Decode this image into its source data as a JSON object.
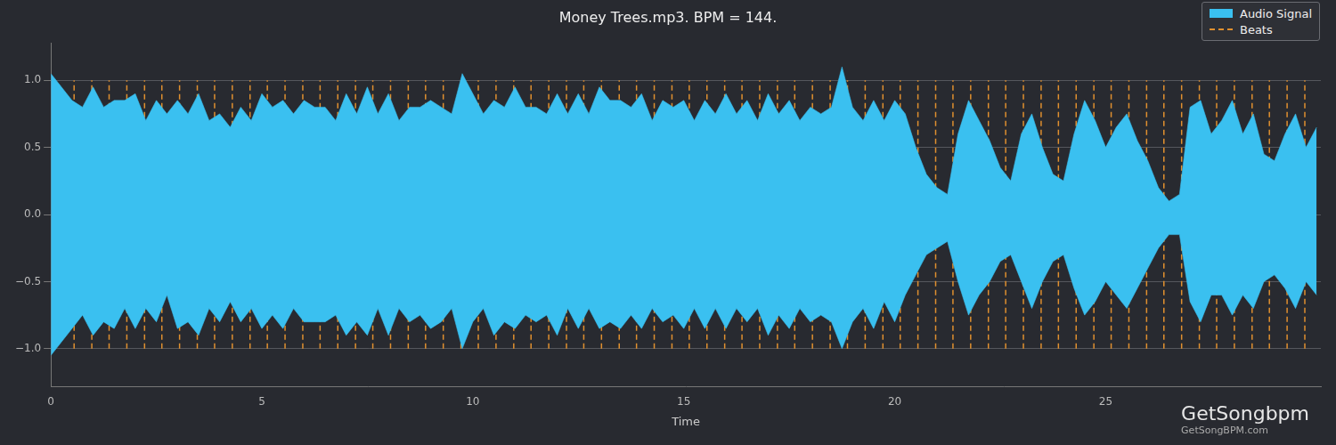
{
  "chart_data": {
    "type": "area",
    "title": "Money Trees.mp3. BPM = 144.",
    "x_label": "Time",
    "x": [
      0,
      0.25,
      0.5,
      0.75,
      1,
      1.25,
      1.5,
      1.75,
      2,
      2.25,
      2.5,
      2.75,
      3,
      3.25,
      3.5,
      3.75,
      4,
      4.25,
      4.5,
      4.75,
      5,
      5.25,
      5.5,
      5.75,
      6,
      6.25,
      6.5,
      6.75,
      7,
      7.25,
      7.5,
      7.75,
      8,
      8.25,
      8.5,
      8.75,
      9,
      9.25,
      9.5,
      9.75,
      10,
      10.25,
      10.5,
      10.75,
      11,
      11.25,
      11.5,
      11.75,
      12,
      12.25,
      12.5,
      12.75,
      13,
      13.25,
      13.5,
      13.75,
      14,
      14.25,
      14.5,
      14.75,
      15,
      15.25,
      15.5,
      15.75,
      16,
      16.25,
      16.5,
      16.75,
      17,
      17.25,
      17.5,
      17.75,
      18,
      18.25,
      18.5,
      18.75,
      19,
      19.25,
      19.5,
      19.75,
      20,
      20.25,
      20.5,
      20.75,
      21,
      21.25,
      21.5,
      21.75,
      22,
      22.25,
      22.5,
      22.75,
      23,
      23.25,
      23.5,
      23.75,
      24,
      24.25,
      24.5,
      24.75,
      25,
      25.25,
      25.5,
      25.75,
      26,
      26.25,
      26.5,
      26.75,
      27,
      27.25,
      27.5,
      27.75,
      28,
      28.25,
      28.5,
      28.75,
      29,
      29.25,
      29.5,
      29.75,
      30
    ],
    "series": [
      {
        "name": "Audio Signal",
        "type": "area",
        "color": "#3ac0f0",
        "values": [
          1.05,
          0.95,
          0.85,
          0.8,
          0.95,
          0.8,
          0.85,
          0.85,
          0.9,
          0.7,
          0.85,
          0.75,
          0.85,
          0.75,
          0.9,
          0.7,
          0.75,
          0.65,
          0.8,
          0.7,
          0.9,
          0.8,
          0.85,
          0.75,
          0.85,
          0.8,
          0.8,
          0.7,
          0.9,
          0.75,
          0.95,
          0.75,
          0.9,
          0.7,
          0.8,
          0.8,
          0.85,
          0.8,
          0.75,
          1.05,
          0.9,
          0.75,
          0.85,
          0.8,
          0.95,
          0.8,
          0.8,
          0.75,
          0.9,
          0.75,
          0.9,
          0.75,
          0.95,
          0.85,
          0.85,
          0.8,
          0.9,
          0.7,
          0.85,
          0.8,
          0.85,
          0.7,
          0.85,
          0.75,
          0.9,
          0.75,
          0.85,
          0.7,
          0.9,
          0.75,
          0.85,
          0.7,
          0.8,
          0.75,
          0.8,
          1.1,
          0.8,
          0.7,
          0.85,
          0.7,
          0.85,
          0.75,
          0.5,
          0.3,
          0.2,
          0.15,
          0.6,
          0.85,
          0.7,
          0.55,
          0.35,
          0.25,
          0.6,
          0.75,
          0.5,
          0.3,
          0.25,
          0.6,
          0.85,
          0.7,
          0.5,
          0.65,
          0.75,
          0.55,
          0.4,
          0.2,
          0.1,
          0.15,
          0.8,
          0.85,
          0.6,
          0.7,
          0.85,
          0.6,
          0.75,
          0.45,
          0.4,
          0.6,
          0.75,
          0.5,
          0.65
        ],
        "lower": [
          -1.05,
          -0.95,
          -0.85,
          -0.75,
          -0.9,
          -0.8,
          -0.85,
          -0.7,
          -0.85,
          -0.7,
          -0.8,
          -0.6,
          -0.85,
          -0.8,
          -0.9,
          -0.7,
          -0.8,
          -0.65,
          -0.8,
          -0.7,
          -0.85,
          -0.75,
          -0.85,
          -0.7,
          -0.8,
          -0.8,
          -0.8,
          -0.75,
          -0.9,
          -0.8,
          -0.9,
          -0.7,
          -0.9,
          -0.7,
          -0.8,
          -0.75,
          -0.85,
          -0.8,
          -0.7,
          -1.0,
          -0.8,
          -0.7,
          -0.9,
          -0.8,
          -0.85,
          -0.75,
          -0.8,
          -0.75,
          -0.9,
          -0.7,
          -0.85,
          -0.7,
          -0.85,
          -0.8,
          -0.85,
          -0.75,
          -0.85,
          -0.7,
          -0.8,
          -0.75,
          -0.85,
          -0.7,
          -0.85,
          -0.7,
          -0.85,
          -0.7,
          -0.8,
          -0.7,
          -0.9,
          -0.75,
          -0.85,
          -0.7,
          -0.8,
          -0.75,
          -0.8,
          -1.0,
          -0.8,
          -0.7,
          -0.85,
          -0.65,
          -0.8,
          -0.6,
          -0.45,
          -0.3,
          -0.25,
          -0.2,
          -0.5,
          -0.75,
          -0.6,
          -0.5,
          -0.35,
          -0.3,
          -0.5,
          -0.7,
          -0.5,
          -0.35,
          -0.3,
          -0.55,
          -0.75,
          -0.65,
          -0.5,
          -0.6,
          -0.7,
          -0.55,
          -0.4,
          -0.25,
          -0.15,
          -0.15,
          -0.65,
          -0.8,
          -0.6,
          -0.6,
          -0.75,
          -0.6,
          -0.7,
          -0.5,
          -0.45,
          -0.55,
          -0.7,
          -0.5,
          -0.6
        ]
      },
      {
        "name": "Beats",
        "type": "vline",
        "color": "#e0902f",
        "line_style": "dashed",
        "x": [
          0.55,
          0.97,
          1.38,
          1.8,
          2.22,
          2.63,
          3.05,
          3.47,
          3.88,
          4.3,
          4.72,
          5.13,
          5.55,
          5.97,
          6.38,
          6.8,
          7.22,
          7.63,
          8.05,
          8.47,
          8.88,
          9.3,
          9.72,
          10.13,
          10.55,
          10.97,
          11.38,
          11.8,
          12.22,
          12.63,
          13.05,
          13.47,
          13.88,
          14.3,
          14.72,
          15.13,
          15.55,
          15.97,
          16.38,
          16.8,
          17.22,
          17.63,
          18.05,
          18.47,
          18.88,
          19.3,
          19.72,
          20.13,
          20.55,
          20.97,
          21.38,
          21.8,
          22.22,
          22.63,
          23.05,
          23.47,
          23.88,
          24.3,
          24.72,
          25.13,
          25.55,
          25.97,
          26.38,
          26.8,
          27.22,
          27.63,
          28.05,
          28.47,
          28.88,
          29.3,
          29.72
        ],
        "span": [
          -1,
          1
        ]
      }
    ],
    "xlim": [
      0,
      30.1
    ],
    "xticks": [
      0,
      5,
      10,
      15,
      20,
      25
    ],
    "ylim": [
      -1.28,
      1.28
    ],
    "yticks": [
      {
        "value": -1,
        "label": "−1.0"
      },
      {
        "value": -0.5,
        "label": "−0.5"
      },
      {
        "value": 0,
        "label": "0.0"
      },
      {
        "value": 0.5,
        "label": "0.5"
      },
      {
        "value": 1,
        "label": "1.0"
      }
    ],
    "grid": "y",
    "legend": "upper right",
    "annotations": [
      "GetSongbpm",
      "GetSongBPM.com"
    ]
  }
}
